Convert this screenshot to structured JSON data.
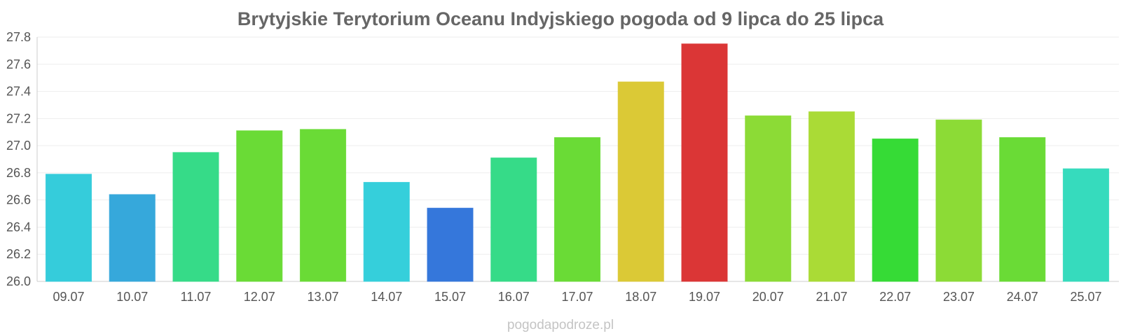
{
  "chart_data": {
    "type": "bar",
    "title": "Brytyjskie Terytorium Oceanu Indyjskiego pogoda od 9 lipca do 25 lipca",
    "xlabel": "",
    "ylabel": "",
    "categories": [
      "09.07",
      "10.07",
      "11.07",
      "12.07",
      "13.07",
      "14.07",
      "15.07",
      "16.07",
      "17.07",
      "18.07",
      "19.07",
      "20.07",
      "21.07",
      "22.07",
      "23.07",
      "24.07",
      "25.07"
    ],
    "values": [
      26.79,
      26.64,
      26.95,
      27.11,
      27.12,
      26.73,
      26.54,
      26.91,
      27.06,
      27.47,
      27.75,
      27.22,
      27.25,
      27.05,
      27.19,
      27.06,
      26.83
    ],
    "colors": [
      "#35ccdb",
      "#36a8db",
      "#36db88",
      "#6adb36",
      "#6adb36",
      "#35cfdb",
      "#3577db",
      "#36db88",
      "#6adb36",
      "#dbc936",
      "#db3636",
      "#8cdb36",
      "#aadb36",
      "#36db36",
      "#8cdb36",
      "#6adb36",
      "#36dbbd"
    ],
    "ylim": [
      26.0,
      27.8
    ],
    "yticks": [
      "26.0",
      "26.2",
      "26.4",
      "26.6",
      "26.8",
      "27.0",
      "27.2",
      "27.4",
      "27.6",
      "27.8"
    ],
    "grid": true,
    "legend": "none"
  },
  "watermark": "pogodapodroze.pl"
}
